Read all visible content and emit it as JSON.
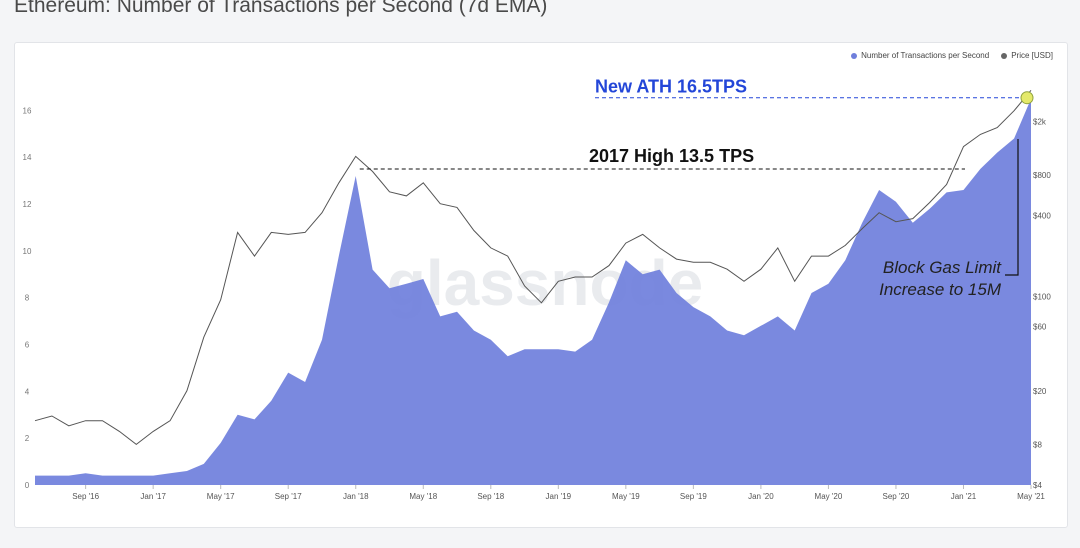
{
  "page": {
    "title": "Ethereum: Number of Transactions per Second (7d EMA)"
  },
  "legend": {
    "series1_label": "Number of Transactions per Second",
    "series2_label": "Price [USD]"
  },
  "watermark": "glassnode",
  "colors": {
    "tps": "#6f7fdc",
    "price": "#555555",
    "ath": "#2346d8",
    "annotation": "#111111"
  },
  "annotations": {
    "ath": "New ATH 16.5TPS",
    "high2017": "2017 High 13.5 TPS",
    "gas_line1": "Block Gas Limit",
    "gas_line2": "Increase to 15M"
  },
  "chart_data": {
    "type": "area",
    "x_tick_labels": [
      "Sep '16",
      "Jan '17",
      "May '17",
      "Sep '17",
      "Jan '18",
      "May '18",
      "Sep '18",
      "Jan '19",
      "May '19",
      "Sep '19",
      "Jan '20",
      "May '20",
      "Sep '20",
      "Jan '21",
      "May '21"
    ],
    "y_left_ticks": [
      0,
      2,
      4,
      6,
      8,
      10,
      12,
      14,
      16
    ],
    "y_left_range": [
      0,
      17
    ],
    "y_right_ticks": [
      "$4",
      "$8",
      "$20",
      "$60",
      "$100",
      "$400",
      "$800",
      "$2k"
    ],
    "y_right_scale": "log",
    "grid": false,
    "legend_position": "top-right",
    "x": [
      "2016-06",
      "2016-07",
      "2016-08",
      "2016-09",
      "2016-10",
      "2016-11",
      "2016-12",
      "2017-01",
      "2017-02",
      "2017-03",
      "2017-04",
      "2017-05",
      "2017-06",
      "2017-07",
      "2017-08",
      "2017-09",
      "2017-10",
      "2017-11",
      "2017-12",
      "2018-01",
      "2018-02",
      "2018-03",
      "2018-04",
      "2018-05",
      "2018-06",
      "2018-07",
      "2018-08",
      "2018-09",
      "2018-10",
      "2018-11",
      "2018-12",
      "2019-01",
      "2019-02",
      "2019-03",
      "2019-04",
      "2019-05",
      "2019-06",
      "2019-07",
      "2019-08",
      "2019-09",
      "2019-10",
      "2019-11",
      "2019-12",
      "2020-01",
      "2020-02",
      "2020-03",
      "2020-04",
      "2020-05",
      "2020-06",
      "2020-07",
      "2020-08",
      "2020-09",
      "2020-10",
      "2020-11",
      "2020-12",
      "2021-01",
      "2021-02",
      "2021-03",
      "2021-04",
      "2021-05"
    ],
    "series": [
      {
        "name": "Number of Transactions per Second",
        "axis": "left",
        "values": [
          0.4,
          0.4,
          0.4,
          0.5,
          0.4,
          0.4,
          0.4,
          0.4,
          0.5,
          0.6,
          0.9,
          1.8,
          3.0,
          2.8,
          3.6,
          4.8,
          4.4,
          6.2,
          9.8,
          13.2,
          9.2,
          8.4,
          8.6,
          8.8,
          7.2,
          7.4,
          6.6,
          6.2,
          5.5,
          5.8,
          5.8,
          5.8,
          5.7,
          6.2,
          7.8,
          9.6,
          9.0,
          9.2,
          8.2,
          7.6,
          7.2,
          6.6,
          6.4,
          6.8,
          7.2,
          6.6,
          8.2,
          8.6,
          9.6,
          11.2,
          12.6,
          12.1,
          11.2,
          11.8,
          12.5,
          12.6,
          13.5,
          14.2,
          14.8,
          16.5
        ]
      },
      {
        "name": "Price [USD]",
        "axis": "right",
        "values": [
          12,
          13,
          11,
          12,
          12,
          10,
          8,
          10,
          12,
          20,
          50,
          95,
          300,
          200,
          300,
          290,
          300,
          420,
          700,
          1100,
          850,
          600,
          560,
          700,
          490,
          460,
          310,
          230,
          200,
          120,
          90,
          130,
          140,
          140,
          170,
          250,
          290,
          230,
          190,
          180,
          180,
          160,
          130,
          160,
          230,
          130,
          200,
          200,
          240,
          320,
          420,
          360,
          380,
          500,
          680,
          1300,
          1600,
          1800,
          2400,
          3400
        ]
      }
    ]
  }
}
